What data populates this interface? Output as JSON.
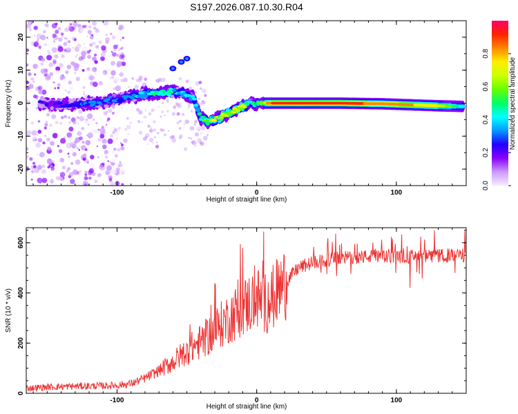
{
  "title": "S197.2026.087.10.30.R04",
  "chart_data": [
    {
      "type": "heatmap",
      "title": "S197.2026.087.10.30.R04",
      "xlabel": "Height of straight line (km)",
      "ylabel": "Frequency (Hz)",
      "xlim": [
        -165,
        150
      ],
      "ylim": [
        -25,
        25
      ],
      "xticks": [
        -100,
        0,
        100
      ],
      "yticks": [
        -20,
        -10,
        0,
        10,
        20
      ],
      "colorbar": {
        "label": "Normalized spectral amplitude",
        "range": [
          0,
          1
        ],
        "ticks": [
          "0.0",
          "0.2",
          "0.4",
          "0.6",
          "0.8"
        ],
        "colors": [
          "#f5edfb",
          "#cc99ff",
          "#8800ff",
          "#2200ff",
          "#0099ff",
          "#00ffff",
          "#00ff66",
          "#66ff00",
          "#ccff00",
          "#ffee00",
          "#ff8800",
          "#ff2200",
          "#ff0066"
        ]
      },
      "ridge": {
        "x": [
          -155,
          -140,
          -125,
          -110,
          -95,
          -80,
          -65,
          -55,
          -45,
          -40,
          -35,
          -30,
          -25,
          -20,
          -15,
          -10,
          -5,
          0,
          10,
          30,
          60,
          90,
          110,
          130,
          148
        ],
        "y": [
          0,
          -0.5,
          -0.3,
          0.3,
          1.5,
          2.8,
          3.2,
          3.5,
          1.5,
          -4.5,
          -5.5,
          -5,
          -4,
          -3,
          -2,
          -1,
          0,
          0,
          0,
          0,
          0,
          -0.2,
          -0.5,
          -0.8,
          -1.0
        ],
        "amplitude": [
          0.22,
          0.25,
          0.3,
          0.35,
          0.35,
          0.45,
          0.5,
          0.4,
          0.4,
          0.55,
          0.65,
          0.75,
          0.7,
          0.75,
          0.8,
          0.75,
          0.5,
          0.45,
          0.92,
          0.95,
          0.95,
          0.9,
          0.85,
          0.75,
          0.45
        ]
      }
    },
    {
      "type": "line",
      "xlabel": "Height of straight line (km)",
      "ylabel": "SNR (10 * v/v)",
      "xlim": [
        -165,
        150
      ],
      "ylim": [
        0,
        660
      ],
      "xticks": [
        -100,
        0,
        100
      ],
      "yticks": [
        0,
        200,
        400,
        600
      ],
      "series": [
        {
          "name": "SNR",
          "color": "#ee3333",
          "x": [
            -165,
            -150,
            -130,
            -110,
            -100,
            -90,
            -80,
            -70,
            -60,
            -50,
            -40,
            -30,
            -20,
            -10,
            0,
            5,
            10,
            20,
            30,
            40,
            60,
            80,
            100,
            120,
            140,
            150
          ],
          "y": [
            20,
            25,
            28,
            30,
            32,
            38,
            60,
            90,
            125,
            170,
            205,
            250,
            300,
            340,
            380,
            360,
            370,
            440,
            500,
            520,
            540,
            545,
            545,
            545,
            550,
            550
          ]
        }
      ],
      "notable_peaks": [
        {
          "x": 5,
          "y": 645
        },
        {
          "x": -30,
          "y": 440
        }
      ]
    }
  ]
}
